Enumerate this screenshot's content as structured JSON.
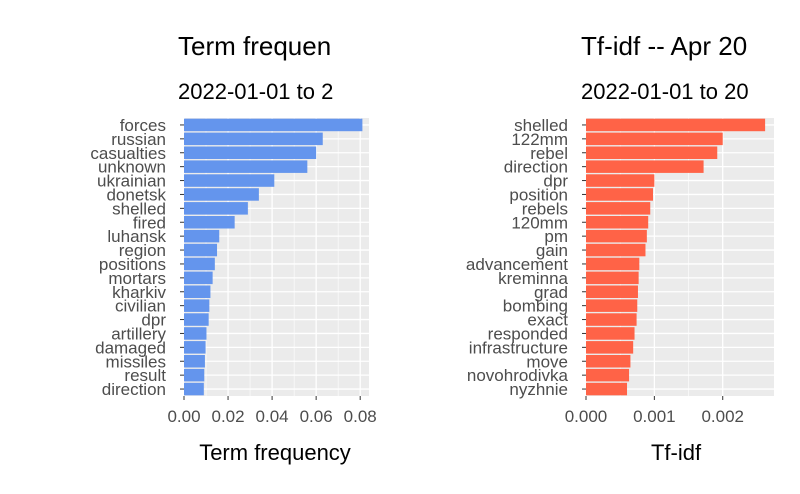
{
  "chart_data": [
    {
      "type": "bar",
      "orientation": "horizontal",
      "title": "Term frequen",
      "subtitle": "2022-01-01 to 2",
      "xlabel": "Term frequency",
      "ylabel": "",
      "xlim": [
        0,
        0.084
      ],
      "xticks": [
        0.0,
        0.02,
        0.04,
        0.06,
        0.08
      ],
      "xtick_labels": [
        "0.00",
        "0.02",
        "0.04",
        "0.06",
        "0.08"
      ],
      "grid": true,
      "color": "#6495ED",
      "categories": [
        "forces",
        "russian",
        "casualties",
        "unknown",
        "ukrainian",
        "donetsk",
        "shelled",
        "fired",
        "luhansk",
        "region",
        "positions",
        "mortars",
        "kharkiv",
        "civilian",
        "dpr",
        "artillery",
        "damaged",
        "missiles",
        "result",
        "direction"
      ],
      "values": [
        0.081,
        0.063,
        0.06,
        0.056,
        0.041,
        0.034,
        0.029,
        0.023,
        0.016,
        0.015,
        0.014,
        0.013,
        0.012,
        0.0115,
        0.0112,
        0.0102,
        0.0098,
        0.0095,
        0.0092,
        0.009
      ]
    },
    {
      "type": "bar",
      "orientation": "horizontal",
      "title": "Tf-idf -- Apr 20",
      "subtitle": "2022-01-01 to 20",
      "xlabel": "Tf-idf",
      "ylabel": "",
      "xlim": [
        0,
        0.00275
      ],
      "xticks": [
        0.0,
        0.001,
        0.002
      ],
      "xtick_labels": [
        "0.000",
        "0.001",
        "0.002"
      ],
      "grid": true,
      "color": "#FF6347",
      "categories": [
        "shelled",
        "122mm",
        "rebel",
        "direction",
        "dpr",
        "position",
        "rebels",
        "120mm",
        "pm",
        "gain",
        "advancement",
        "kreminna",
        "grad",
        "bombing",
        "exact",
        "responded",
        "infrastructure",
        "move",
        "novohrodivka",
        "nyzhnie"
      ],
      "values": [
        0.00262,
        0.002,
        0.00192,
        0.00172,
        0.001,
        0.00098,
        0.00094,
        0.00091,
        0.00089,
        0.00087,
        0.00078,
        0.00077,
        0.00076,
        0.00075,
        0.00074,
        0.00071,
        0.00069,
        0.00065,
        0.00063,
        0.0006
      ]
    }
  ]
}
